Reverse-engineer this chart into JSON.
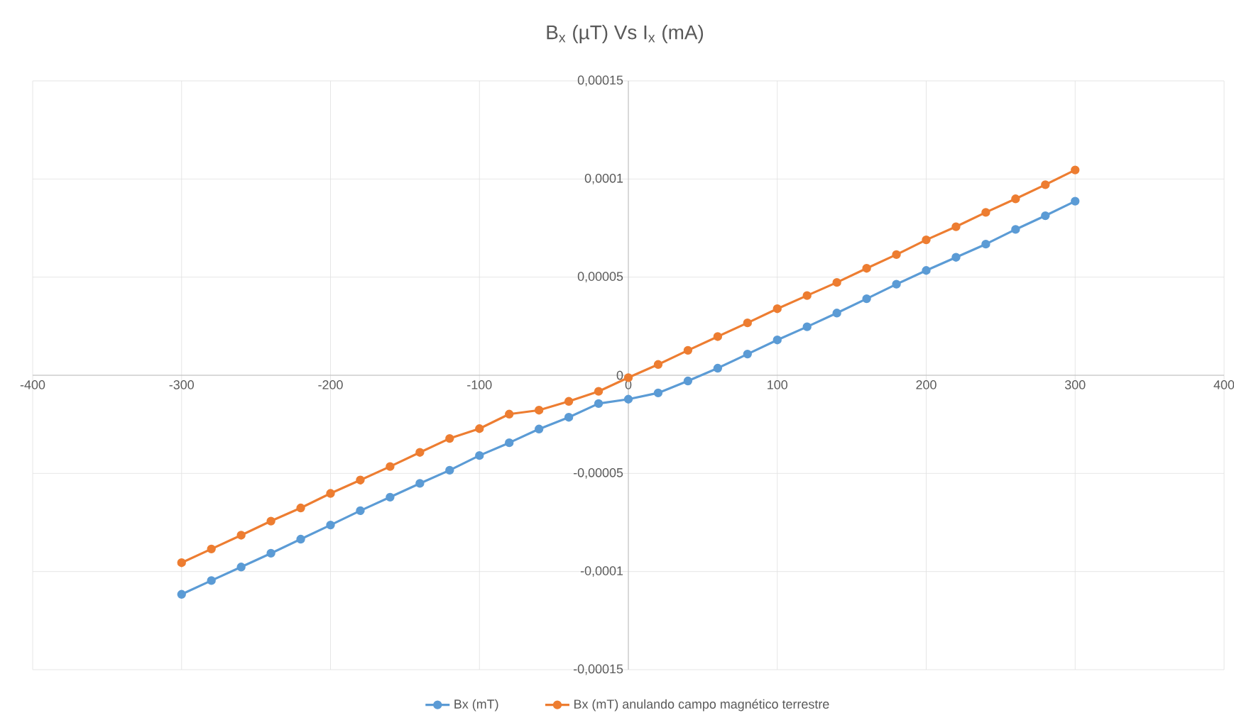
{
  "chart_data": {
    "type": "line",
    "title": "B$_{x}$ (µT) Vs I$_{x}$ (mA)",
    "x": [
      -300,
      -280,
      -260,
      -240,
      -220,
      -200,
      -180,
      -160,
      -140,
      -120,
      -100,
      -80,
      -60,
      -40,
      -20,
      0,
      20,
      40,
      60,
      80,
      100,
      120,
      140,
      160,
      180,
      200,
      220,
      240,
      260,
      280,
      300
    ],
    "series": [
      {
        "name": "Bx (mT)",
        "color": "#5b9bd5",
        "values": [
          -0.0001116,
          -0.0001046,
          -9.77e-05,
          -9.07e-05,
          -8.35e-05,
          -7.63e-05,
          -6.9e-05,
          -6.21e-05,
          -5.51e-05,
          -4.84e-05,
          -4.09e-05,
          -3.44e-05,
          -2.74e-05,
          -2.14e-05,
          -1.44e-05,
          -1.22e-05,
          -9e-06,
          -2.9e-06,
          3.6e-06,
          1.08e-05,
          1.8e-05,
          2.47e-05,
          3.17e-05,
          3.9e-05,
          4.64e-05,
          5.34e-05,
          6.01e-05,
          6.68e-05,
          7.43e-05,
          8.13e-05,
          8.87e-05
        ]
      },
      {
        "name": "Bx (mT) anulando campo magnético terrestre",
        "color": "#ed7d31",
        "values": [
          -9.55e-05,
          -8.85e-05,
          -8.15e-05,
          -7.43e-05,
          -6.76e-05,
          -6.02e-05,
          -5.34e-05,
          -4.65e-05,
          -3.93e-05,
          -3.22e-05,
          -2.72e-05,
          -1.98e-05,
          -1.78e-05,
          -1.33e-05,
          -8.2e-06,
          -1.2e-06,
          5.5e-06,
          1.27e-05,
          1.97e-05,
          2.67e-05,
          3.39e-05,
          4.06e-05,
          4.73e-05,
          5.45e-05,
          6.15e-05,
          6.9e-05,
          7.57e-05,
          8.3e-05,
          8.99e-05,
          9.71e-05,
          0.0001046
        ]
      }
    ],
    "xlim": [
      -400,
      400
    ],
    "xticks": [
      -400,
      -300,
      -200,
      -100,
      0,
      100,
      200,
      300,
      400
    ],
    "ylim": [
      -0.00015,
      0.00015
    ],
    "yticks": [
      {
        "value": -0.00015,
        "label": "-0,00015"
      },
      {
        "value": -0.0001,
        "label": "-0,0001"
      },
      {
        "value": -5e-05,
        "label": "-0,00005"
      },
      {
        "value": 0,
        "label": "0"
      },
      {
        "value": 5e-05,
        "label": "0,00005"
      },
      {
        "value": 0.0001,
        "label": "0,0001"
      },
      {
        "value": 0.00015,
        "label": "0,00015"
      }
    ],
    "grid": true,
    "legend": "bottom",
    "marker": "circle",
    "line_style": "solid"
  }
}
